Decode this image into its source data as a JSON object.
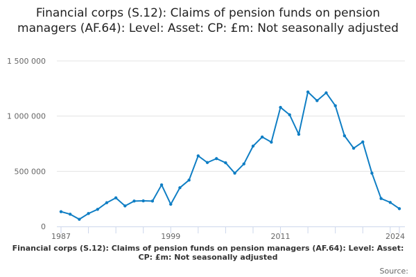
{
  "chart_data": {
    "type": "line",
    "title": "Financial corps (S.12): Claims of pension funds on pension managers (AF.64): Level: Asset: CP: £m: Not seasonally adjusted",
    "xlabel": "",
    "ylabel": "",
    "ylim": [
      0,
      1500000
    ],
    "yticks": [
      0,
      500000,
      1000000,
      1500000
    ],
    "ytick_labels": [
      "0",
      "500 000",
      "1 000 000",
      "1 500 000"
    ],
    "xtick_labels": [
      "1987",
      "1999",
      "2011",
      "2024"
    ],
    "grid": true,
    "color": "#0f7ec4",
    "x": [
      1987,
      1988,
      1989,
      1990,
      1991,
      1992,
      1993,
      1994,
      1995,
      1996,
      1997,
      1998,
      1999,
      2000,
      2001,
      2002,
      2003,
      2004,
      2005,
      2006,
      2007,
      2008,
      2009,
      2010,
      2011,
      2012,
      2013,
      2014,
      2015,
      2016,
      2017,
      2018,
      2019,
      2020,
      2021,
      2022,
      2023,
      2024
    ],
    "values": [
      134000,
      111000,
      65000,
      117000,
      155000,
      215000,
      259000,
      186000,
      230000,
      232000,
      230000,
      377000,
      201000,
      351000,
      420000,
      640000,
      579000,
      615000,
      577000,
      483000,
      567000,
      728000,
      811000,
      764000,
      1079000,
      1012000,
      835000,
      1219000,
      1140000,
      1211000,
      1094000,
      822000,
      709000,
      766000,
      483000,
      253000,
      218000,
      161000
    ]
  },
  "footer": {
    "series_title": "Financial corps (S.12): Claims of pension funds on pension managers (AF.64): Level: Asset: CP: £m: Not seasonally adjusted",
    "source_label": "Source:"
  }
}
